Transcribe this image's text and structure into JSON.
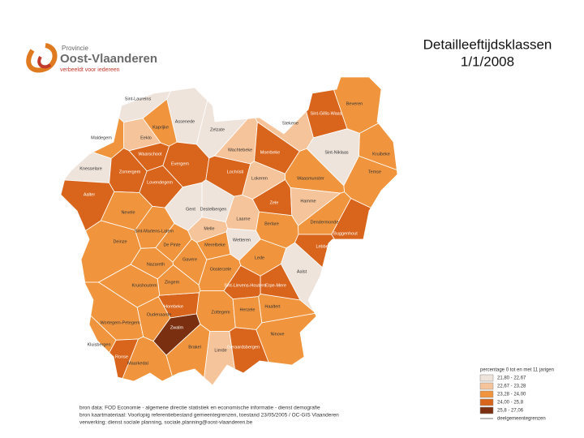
{
  "header": {
    "logo_small": "Provincie",
    "logo_name": "Oost-Vlaanderen",
    "logo_tagline": "verbeeldt voor iedereen",
    "title": "Detailleeftijdsklassen",
    "date": "1/1/2008"
  },
  "legend": {
    "title": "percentage 0 tot en met 11 jarigen",
    "classes": [
      {
        "label": "21,80 - 22,67",
        "color": "#efe4dc"
      },
      {
        "label": "22,67 - 23,28",
        "color": "#f6c49a"
      },
      {
        "label": "23,28 - 24,00",
        "color": "#f0953e"
      },
      {
        "label": "24,00 - 25,8",
        "color": "#d9651c"
      },
      {
        "label": "25,8 - 27,06",
        "color": "#7a3010"
      }
    ],
    "boundary": "deelgemeentegrenzen"
  },
  "regions": [
    {
      "label": "Sint-Laureins",
      "class": 0
    },
    {
      "label": "Assenede",
      "class": 0
    },
    {
      "label": "Eeklo",
      "class": 1
    },
    {
      "label": "Kaprijke",
      "class": 2
    },
    {
      "label": "Maldegem",
      "class": 2
    },
    {
      "label": "Zelzate",
      "class": 0
    },
    {
      "label": "Wachtebeke",
      "class": 1
    },
    {
      "label": "Stekene",
      "class": 1
    },
    {
      "label": "Sint-Gillis-Waas",
      "class": 3
    },
    {
      "label": "Beveren",
      "class": 2
    },
    {
      "label": "Kruibeke",
      "class": 2
    },
    {
      "label": "Temse",
      "class": 2
    },
    {
      "label": "Sint-Niklaas",
      "class": 0
    },
    {
      "label": "Waasmunster",
      "class": 2
    },
    {
      "label": "Lokeren",
      "class": 1
    },
    {
      "label": "Moerbeke",
      "class": 3
    },
    {
      "label": "Knesselare",
      "class": 0
    },
    {
      "label": "Aalter",
      "class": 3
    },
    {
      "label": "Zomergem",
      "class": 3
    },
    {
      "label": "Waarschoot",
      "class": 3
    },
    {
      "label": "Lovendegem",
      "class": 3
    },
    {
      "label": "Evergem",
      "class": 3
    },
    {
      "label": "Gent",
      "class": 0
    },
    {
      "label": "Destelbergen",
      "class": 0
    },
    {
      "label": "Lochristi",
      "class": 3
    },
    {
      "label": "Nevele",
      "class": 2
    },
    {
      "label": "Deinze",
      "class": 2
    },
    {
      "label": "Sint-Martens-Latem",
      "class": 2
    },
    {
      "label": "De Pinte",
      "class": 2
    },
    {
      "label": "Merelbeke",
      "class": 2
    },
    {
      "label": "Melle",
      "class": 1
    },
    {
      "label": "Wetteren",
      "class": 0
    },
    {
      "label": "Laarne",
      "class": 1
    },
    {
      "label": "Berlare",
      "class": 2
    },
    {
      "label": "Zele",
      "class": 3
    },
    {
      "label": "Hamme",
      "class": 1
    },
    {
      "label": "Dendermonde",
      "class": 2
    },
    {
      "label": "Buggenhout",
      "class": 3
    },
    {
      "label": "Lebbeke",
      "class": 3
    },
    {
      "label": "Aalst",
      "class": 0
    },
    {
      "label": "Lede",
      "class": 2
    },
    {
      "label": "Zottegem",
      "class": 2
    },
    {
      "label": "Oosterzele",
      "class": 2
    },
    {
      "label": "Gavere",
      "class": 2
    },
    {
      "label": "Nazareth",
      "class": 2
    },
    {
      "label": "Kruishoutem",
      "class": 2
    },
    {
      "label": "Oudenaarde",
      "class": 2
    },
    {
      "label": "Wortegem-Petegem",
      "class": 2
    },
    {
      "label": "Kluisbergen",
      "class": 2
    },
    {
      "label": "Maarkedal",
      "class": 2
    },
    {
      "label": "Brakel",
      "class": 2
    },
    {
      "label": "Zwalm",
      "class": 4
    },
    {
      "label": "Horebeke",
      "class": 3
    },
    {
      "label": "Lierde",
      "class": 1
    },
    {
      "label": "Geraardsbergen",
      "class": 3
    },
    {
      "label": "Ninove",
      "class": 2
    },
    {
      "label": "Haaltert",
      "class": 2
    },
    {
      "label": "Erpe-Mere",
      "class": 3
    },
    {
      "label": "Herzele",
      "class": 2
    },
    {
      "label": "Sint-Lievens-Houtem",
      "class": 3
    },
    {
      "label": "Zingem",
      "class": 2
    },
    {
      "label": "Ronse",
      "class": 3
    }
  ],
  "sources": [
    "bron data: FOD Economie - algemene directie statistiek en economische informatie - dienst demografie",
    "bron kaartmateriaal: Voorlopig referentiebestand gemeentegrenzen, toestand 23/05/2005 / OC-GIS Vlaanderen",
    "verwerking: dienst sociale planning, sociale.planning@oost-vlaanderen.be"
  ]
}
